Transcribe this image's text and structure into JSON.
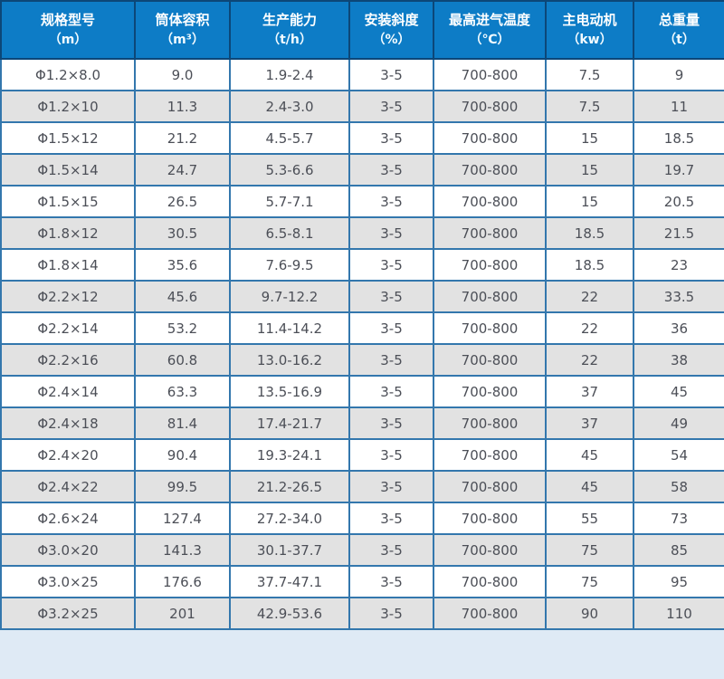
{
  "page": {
    "background_color": "#dfeaf5",
    "header_background_color": "#0d7cc6",
    "header_text_color": "#ffffff",
    "grid_border_color": "#3377ad",
    "header_border_color": "#0c4778",
    "row_alt_color": "#e2e2e2",
    "cell_text_color": "#4c4f57"
  },
  "chart_data": {
    "type": "table",
    "columns": [
      {
        "label": "规格型号",
        "unit": "（m）"
      },
      {
        "label": "筒体容积",
        "unit": "（m³）"
      },
      {
        "label": "生产能力",
        "unit": "（t/h）"
      },
      {
        "label": "安装斜度",
        "unit": "（%）"
      },
      {
        "label": "最高进气温度",
        "unit": "（℃）"
      },
      {
        "label": "主电动机",
        "unit": "（kw）"
      },
      {
        "label": "总重量",
        "unit": "（t）"
      }
    ],
    "rows": [
      [
        "Φ1.2×8.0",
        "9.0",
        "1.9-2.4",
        "3-5",
        "700-800",
        "7.5",
        "9"
      ],
      [
        "Φ1.2×10",
        "11.3",
        "2.4-3.0",
        "3-5",
        "700-800",
        "7.5",
        "11"
      ],
      [
        "Φ1.5×12",
        "21.2",
        "4.5-5.7",
        "3-5",
        "700-800",
        "15",
        "18.5"
      ],
      [
        "Φ1.5×14",
        "24.7",
        "5.3-6.6",
        "3-5",
        "700-800",
        "15",
        "19.7"
      ],
      [
        "Φ1.5×15",
        "26.5",
        "5.7-7.1",
        "3-5",
        "700-800",
        "15",
        "20.5"
      ],
      [
        "Φ1.8×12",
        "30.5",
        "6.5-8.1",
        "3-5",
        "700-800",
        "18.5",
        "21.5"
      ],
      [
        "Φ1.8×14",
        "35.6",
        "7.6-9.5",
        "3-5",
        "700-800",
        "18.5",
        "23"
      ],
      [
        "Φ2.2×12",
        "45.6",
        "9.7-12.2",
        "3-5",
        "700-800",
        "22",
        "33.5"
      ],
      [
        "Φ2.2×14",
        "53.2",
        "11.4-14.2",
        "3-5",
        "700-800",
        "22",
        "36"
      ],
      [
        "Φ2.2×16",
        "60.8",
        "13.0-16.2",
        "3-5",
        "700-800",
        "22",
        "38"
      ],
      [
        "Φ2.4×14",
        "63.3",
        "13.5-16.9",
        "3-5",
        "700-800",
        "37",
        "45"
      ],
      [
        "Φ2.4×18",
        "81.4",
        "17.4-21.7",
        "3-5",
        "700-800",
        "37",
        "49"
      ],
      [
        "Φ2.4×20",
        "90.4",
        "19.3-24.1",
        "3-5",
        "700-800",
        "45",
        "54"
      ],
      [
        "Φ2.4×22",
        "99.5",
        "21.2-26.5",
        "3-5",
        "700-800",
        "45",
        "58"
      ],
      [
        "Φ2.6×24",
        "127.4",
        "27.2-34.0",
        "3-5",
        "700-800",
        "55",
        "73"
      ],
      [
        "Φ3.0×20",
        "141.3",
        "30.1-37.7",
        "3-5",
        "700-800",
        "75",
        "85"
      ],
      [
        "Φ3.0×25",
        "176.6",
        "37.7-47.1",
        "3-5",
        "700-800",
        "75",
        "95"
      ],
      [
        "Φ3.2×25",
        "201",
        "42.9-53.6",
        "3-5",
        "700-800",
        "90",
        "110"
      ]
    ]
  }
}
